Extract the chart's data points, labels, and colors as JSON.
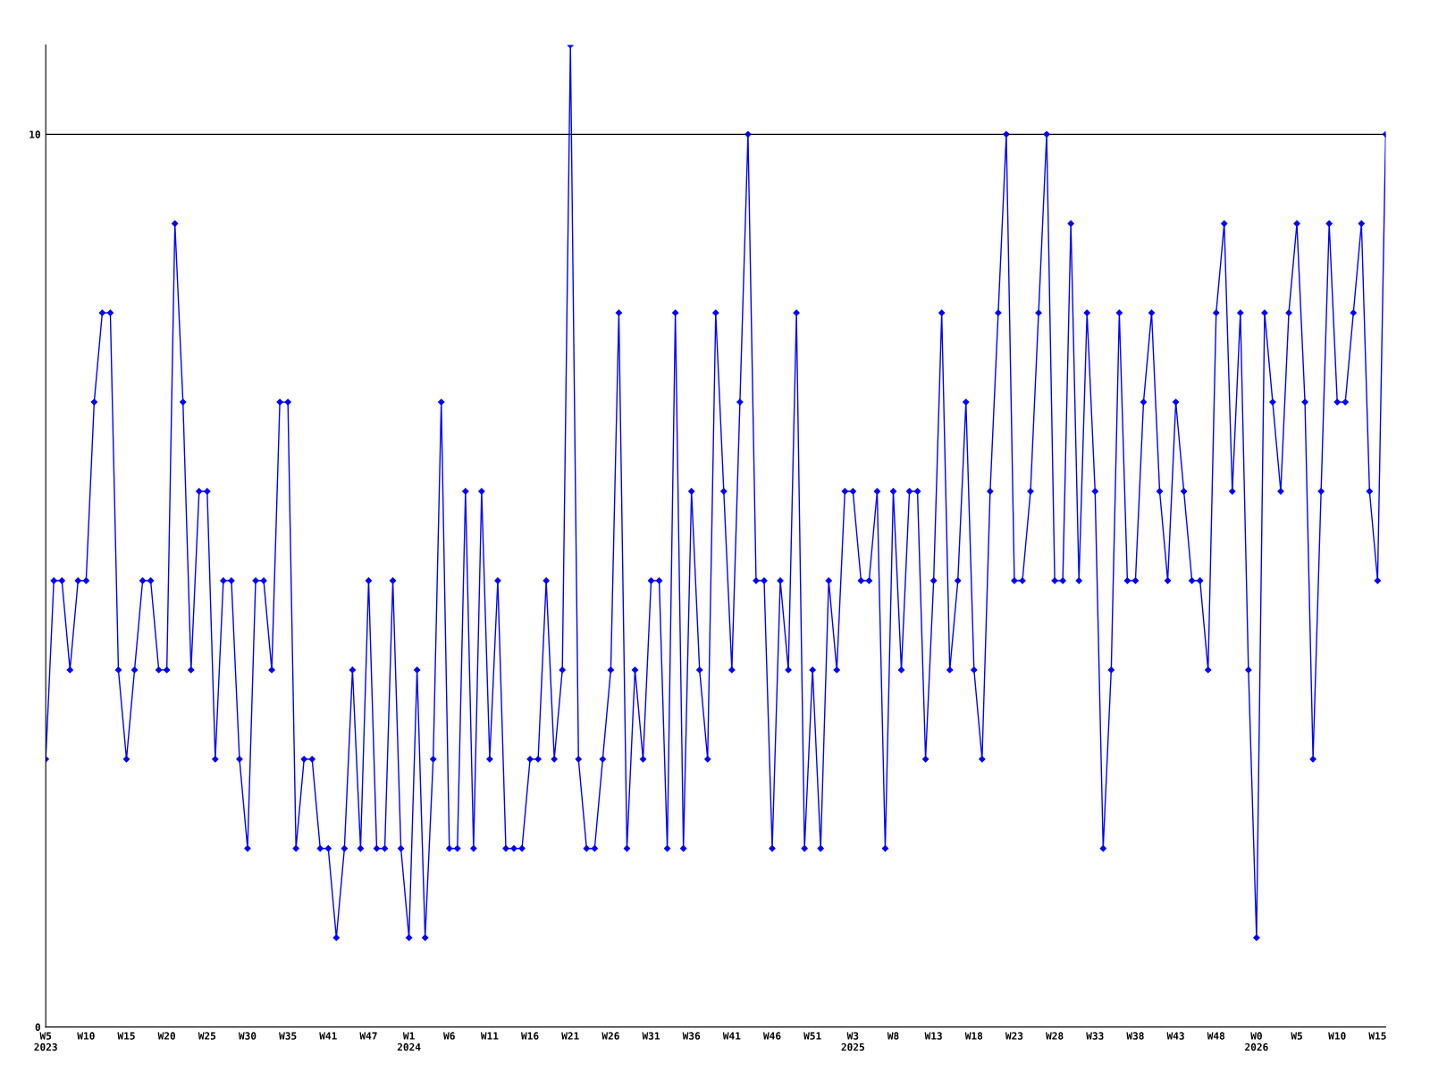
{
  "chart_data": {
    "type": "line",
    "categories": [
      "W5\n2023",
      null,
      null,
      null,
      null,
      "W10",
      null,
      null,
      null,
      null,
      "W15",
      null,
      null,
      null,
      null,
      "W20",
      null,
      null,
      null,
      null,
      "W25",
      null,
      null,
      null,
      null,
      "W30",
      null,
      null,
      null,
      null,
      "W35",
      null,
      null,
      null,
      null,
      "W41",
      null,
      null,
      null,
      null,
      "W47",
      null,
      null,
      null,
      null,
      "W1\n2024",
      null,
      null,
      null,
      null,
      "W6",
      null,
      null,
      null,
      null,
      "W11",
      null,
      null,
      null,
      null,
      "W16",
      null,
      null,
      null,
      null,
      "W21",
      null,
      null,
      null,
      null,
      "W26",
      null,
      null,
      null,
      null,
      "W31",
      null,
      null,
      null,
      null,
      "W36",
      null,
      null,
      null,
      null,
      "W41",
      null,
      null,
      null,
      null,
      "W46",
      null,
      null,
      null,
      null,
      "W51",
      null,
      null,
      null,
      null,
      "W3\n2025",
      null,
      null,
      null,
      null,
      "W8",
      null,
      null,
      null,
      null,
      "W13",
      null,
      null,
      null,
      null,
      "W18",
      null,
      null,
      null,
      null,
      "W23",
      null,
      null,
      null,
      null,
      "W28",
      null,
      null,
      null,
      null,
      "W33",
      null,
      null,
      null,
      null,
      "W38",
      null,
      null,
      null,
      null,
      "W43",
      null,
      null,
      null,
      null,
      "W48",
      null,
      null,
      null,
      null,
      "W0\n2026",
      null,
      null,
      null,
      null,
      "W5",
      null,
      null,
      null,
      null,
      "W10",
      null,
      null,
      null,
      null,
      "W15",
      null
    ],
    "series": [
      {
        "color": "#0000ff",
        "values": [
          3,
          5,
          5,
          4,
          5,
          5,
          7,
          8,
          8,
          4,
          3,
          4,
          5,
          5,
          4,
          4,
          9,
          7,
          4,
          6,
          6,
          3,
          5,
          5,
          3,
          2,
          5,
          5,
          4,
          7,
          7,
          2,
          3,
          3,
          2,
          2,
          1,
          2,
          4,
          2,
          5,
          2,
          2,
          5,
          2,
          1,
          4,
          1,
          3,
          7,
          2,
          2,
          6,
          2,
          6,
          3,
          5,
          2,
          2,
          2,
          3,
          3,
          5,
          3,
          4,
          11,
          3,
          2,
          2,
          3,
          4,
          8,
          2,
          4,
          3,
          5,
          5,
          2,
          8,
          2,
          6,
          4,
          3,
          8,
          6,
          4,
          7,
          10,
          5,
          5,
          2,
          5,
          4,
          8,
          2,
          4,
          2,
          5,
          4,
          6,
          6,
          5,
          5,
          6,
          2,
          6,
          4,
          6,
          6,
          3,
          5,
          8,
          4,
          5,
          7,
          4,
          3,
          6,
          8,
          10,
          5,
          5,
          6,
          8,
          10,
          5,
          5,
          9,
          5,
          8,
          6,
          2,
          4,
          8,
          5,
          5,
          7,
          8,
          6,
          5,
          7,
          6,
          5,
          5,
          4,
          8,
          9,
          6,
          8,
          4,
          1,
          8,
          7,
          6,
          8,
          9,
          7,
          3,
          6,
          9,
          7,
          7,
          8,
          9,
          6,
          5,
          10
        ]
      }
    ],
    "ylim": [
      0,
      11
    ],
    "yticks": [
      0,
      10
    ],
    "grid": "y",
    "marker": "diamond",
    "line_style": "solid"
  }
}
